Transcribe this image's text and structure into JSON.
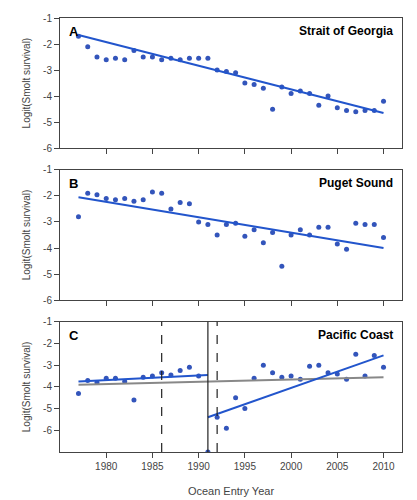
{
  "chart_data": [
    {
      "type": "scatter",
      "title": "Strait of Georgia",
      "annotations": [
        "A"
      ],
      "ylabel": "Logit(Smolt survival)",
      "xlim": [
        1975,
        2012
      ],
      "xticks": [
        1980,
        1985,
        1990,
        1995,
        2000,
        2005,
        2010
      ],
      "ylim": [
        -6,
        -1
      ],
      "yticks": [
        -6,
        -5,
        -4,
        -3,
        -2,
        -1
      ],
      "grid": false,
      "tick_labels": "y",
      "series": [
        {
          "type": "scatter",
          "marker": "circle",
          "color": "#3355bb",
          "x": [
            1977,
            1978,
            1979,
            1980,
            1981,
            1982,
            1983,
            1984,
            1985,
            1986,
            1987,
            1988,
            1989,
            1990,
            1991,
            1992,
            1993,
            1994,
            1995,
            1996,
            1997,
            1998,
            1999,
            2000,
            2001,
            2002,
            2003,
            2004,
            2005,
            2006,
            2007,
            2008,
            2009,
            2010
          ],
          "values": [
            -1.7,
            -2.1,
            -2.5,
            -2.6,
            -2.55,
            -2.6,
            -2.25,
            -2.5,
            -2.5,
            -2.6,
            -2.55,
            -2.6,
            -2.55,
            -2.55,
            -2.55,
            -3.0,
            -3.05,
            -3.1,
            -3.5,
            -3.55,
            -3.7,
            -4.5,
            -3.65,
            -3.9,
            -3.8,
            -3.9,
            -4.35,
            -4.0,
            -4.45,
            -4.55,
            -4.6,
            -4.55,
            -4.55,
            -4.2
          ]
        },
        {
          "type": "line",
          "line_style": "solid",
          "color": "#2255cc",
          "x": [
            1977,
            2010
          ],
          "values": [
            -1.65,
            -4.65
          ]
        }
      ]
    },
    {
      "type": "scatter",
      "title": "Puget Sound",
      "annotations": [
        "B"
      ],
      "ylabel": "Logit(Smolt survival)",
      "xlim": [
        1975,
        2012
      ],
      "xticks": [
        1980,
        1985,
        1990,
        1995,
        2000,
        2005,
        2010
      ],
      "ylim": [
        -6,
        -1
      ],
      "yticks": [
        -6,
        -5,
        -4,
        -3,
        -2,
        -1
      ],
      "grid": false,
      "tick_labels": "y",
      "series": [
        {
          "type": "scatter",
          "marker": "circle",
          "color": "#3355bb",
          "x": [
            1977,
            1978,
            1979,
            1980,
            1981,
            1982,
            1983,
            1984,
            1985,
            1986,
            1987,
            1988,
            1989,
            1990,
            1991,
            1992,
            1993,
            1994,
            1995,
            1996,
            1997,
            1998,
            1999,
            2000,
            2001,
            2002,
            2003,
            2004,
            2005,
            2006,
            2007,
            2008,
            2009,
            2010
          ],
          "values": [
            -2.8,
            -1.9,
            -1.95,
            -2.1,
            -2.15,
            -2.1,
            -2.2,
            -2.15,
            -1.85,
            -1.9,
            -2.5,
            -2.25,
            -2.3,
            -3.0,
            -3.1,
            -3.5,
            -3.1,
            -3.05,
            -3.55,
            -3.3,
            -3.8,
            -3.4,
            -4.7,
            -3.5,
            -3.3,
            -3.5,
            -3.2,
            -3.2,
            -3.85,
            -4.05,
            -3.05,
            -3.1,
            -3.1,
            -3.6
          ]
        },
        {
          "type": "line",
          "line_style": "solid",
          "color": "#2255cc",
          "x": [
            1977,
            2010
          ],
          "values": [
            -2.05,
            -4.0
          ]
        }
      ]
    },
    {
      "type": "scatter",
      "title": "Pacific Coast",
      "annotations": [
        "C"
      ],
      "ylabel": "Logit(Smolt survival)",
      "xlabel": "Ocean Entry Year",
      "xlim": [
        1975,
        2012
      ],
      "xticks": [
        1980,
        1985,
        1990,
        1995,
        2000,
        2005,
        2010
      ],
      "ylim": [
        -7,
        -1
      ],
      "yticks": [
        -6,
        -5,
        -4,
        -3,
        -2,
        -1
      ],
      "grid": false,
      "series": [
        {
          "type": "scatter",
          "marker": "circle",
          "color": "#3355bb",
          "x": [
            1977,
            1978,
            1979,
            1980,
            1981,
            1982,
            1983,
            1984,
            1985,
            1986,
            1987,
            1988,
            1989,
            1990,
            1991,
            1992,
            1993,
            1994,
            1995,
            1996,
            1997,
            1998,
            1999,
            2000,
            2001,
            2002,
            2003,
            2004,
            2005,
            2006,
            2007,
            2008,
            2009,
            2010
          ],
          "values": [
            -4.3,
            -3.7,
            -3.8,
            -3.6,
            -3.6,
            -3.75,
            -4.6,
            -3.55,
            -3.5,
            -3.35,
            -3.45,
            -3.25,
            -3.1,
            -3.5,
            -7.0,
            -5.4,
            -5.9,
            -4.5,
            -5.0,
            -3.6,
            -3.0,
            -3.35,
            -3.55,
            -3.5,
            -3.65,
            -3.05,
            -3.0,
            -3.35,
            -3.4,
            -3.65,
            -2.5,
            -3.5,
            -2.55,
            -3.1
          ]
        },
        {
          "type": "line",
          "line_style": "solid",
          "color": "#888888",
          "x": [
            1977,
            2010
          ],
          "values": [
            -3.9,
            -3.55
          ]
        },
        {
          "type": "line",
          "line_style": "solid",
          "color": "#2255cc",
          "x": [
            1977,
            1991
          ],
          "values": [
            -3.75,
            -3.45
          ]
        },
        {
          "type": "line",
          "line_style": "solid",
          "color": "#2255cc",
          "x": [
            1991,
            2010
          ],
          "values": [
            -5.4,
            -2.55
          ]
        },
        {
          "type": "vline",
          "line_style": "solid",
          "color": "#222222",
          "x": [
            1991
          ]
        },
        {
          "type": "vline",
          "line_style": "dashed",
          "color": "#222222",
          "x": [
            1986,
            1992
          ]
        }
      ]
    }
  ]
}
